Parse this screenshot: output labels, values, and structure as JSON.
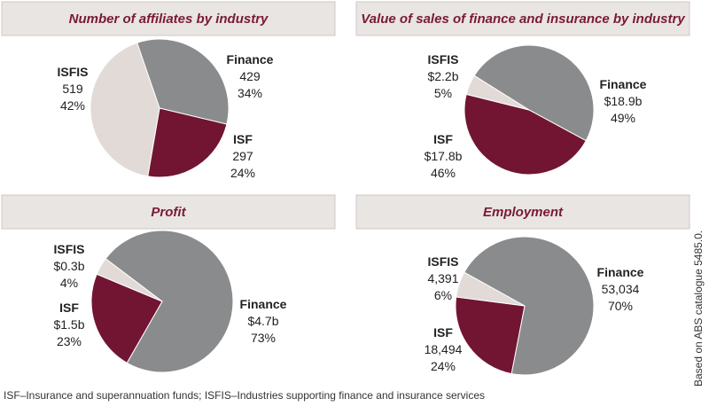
{
  "chart_data": [
    {
      "type": "pie",
      "title": "Number of affiliates by industry",
      "categories": [
        "Finance",
        "ISF",
        "ISFIS"
      ],
      "colors": [
        "#8a8b8c",
        "#711533",
        "#e1dad7"
      ],
      "values": [
        34,
        24,
        42
      ],
      "value_labels": [
        "34%",
        "24%",
        "42%"
      ],
      "amounts": [
        429,
        297,
        519
      ]
    },
    {
      "type": "pie",
      "title": "Value of sales of finance and insurance by industry",
      "categories": [
        "Finance",
        "ISF",
        "ISFIS"
      ],
      "colors": [
        "#8a8b8c",
        "#711533",
        "#e1dad7"
      ],
      "values": [
        49,
        46,
        5
      ],
      "value_labels": [
        "49%",
        "46%",
        "5%"
      ],
      "amounts": [
        18.9,
        17.8,
        2.2
      ],
      "amount_labels": [
        "$18.9b",
        "$17.8b",
        "$2.2b"
      ]
    },
    {
      "type": "pie",
      "title": "Profit",
      "categories": [
        "Finance",
        "ISF",
        "ISFIS"
      ],
      "colors": [
        "#8a8b8c",
        "#711533",
        "#e1dad7"
      ],
      "values": [
        73,
        23,
        4
      ],
      "value_labels": [
        "73%",
        "23%",
        "4%"
      ],
      "amounts": [
        4.7,
        1.5,
        0.3
      ],
      "amount_labels": [
        "$4.7b",
        "$1.5b",
        "$0.3b"
      ]
    },
    {
      "type": "pie",
      "title": "Employment",
      "categories": [
        "Finance",
        "ISF",
        "ISFIS"
      ],
      "colors": [
        "#8a8b8c",
        "#711533",
        "#e1dad7"
      ],
      "values": [
        70,
        24,
        6
      ],
      "value_labels": [
        "70%",
        "24%",
        "6%"
      ],
      "amounts": [
        53034,
        18494,
        4391
      ],
      "amount_labels": [
        "53,034",
        "18,494",
        "4,391"
      ]
    }
  ],
  "notes": {
    "footnote": "ISF–Insurance and superannuation funds; ISFIS–Industries supporting finance and insurance services",
    "source": "Based on ABS catalogue 5485.0."
  }
}
